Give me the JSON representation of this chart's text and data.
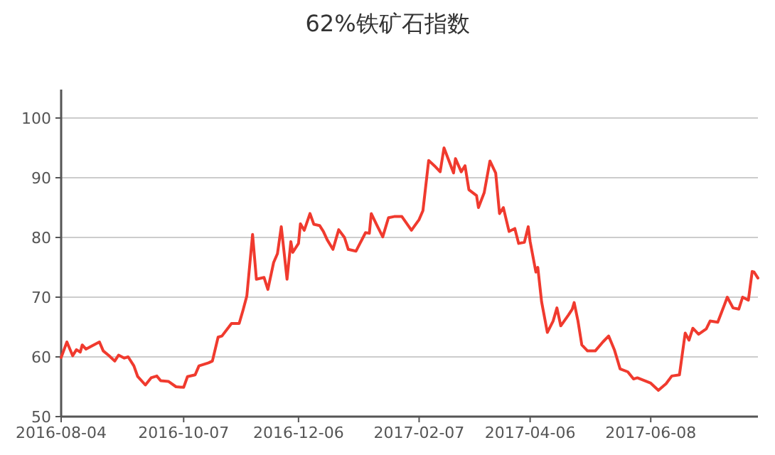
{
  "chart_data": {
    "type": "line",
    "title": "62%铁矿石指数",
    "grid": "y",
    "xlim": [
      "2016-08-04",
      "2017-08-03"
    ],
    "xticks": [
      "2016-08-04",
      "2016-10-07",
      "2016-12-06",
      "2017-02-07",
      "2017-04-06",
      "2017-06-08"
    ],
    "ylim": [
      50,
      100
    ],
    "yticks": [
      50,
      60,
      70,
      80,
      90,
      100
    ],
    "series": [
      {
        "color": "#f03a2e",
        "x": [
          "2016-08-04",
          "2016-08-07",
          "2016-08-10",
          "2016-08-12",
          "2016-08-14",
          "2016-08-15",
          "2016-08-17",
          "2016-08-21",
          "2016-08-24",
          "2016-08-26",
          "2016-08-29",
          "2016-09-01",
          "2016-09-03",
          "2016-09-06",
          "2016-09-08",
          "2016-09-11",
          "2016-09-13",
          "2016-09-17",
          "2016-09-20",
          "2016-09-23",
          "2016-09-25",
          "2016-09-29",
          "2016-10-03",
          "2016-10-07",
          "2016-10-09",
          "2016-10-13",
          "2016-10-15",
          "2016-10-20",
          "2016-10-22",
          "2016-10-25",
          "2016-10-27",
          "2016-11-01",
          "2016-11-05",
          "2016-11-07",
          "2016-11-09",
          "2016-11-12",
          "2016-11-14",
          "2016-11-18",
          "2016-11-20",
          "2016-11-23",
          "2016-11-25",
          "2016-11-27",
          "2016-11-30",
          "2016-12-02",
          "2016-12-03",
          "2016-12-06",
          "2016-12-07",
          "2016-12-09",
          "2016-12-12",
          "2016-12-14",
          "2016-12-17",
          "2016-12-19",
          "2016-12-21",
          "2016-12-24",
          "2016-12-27",
          "2016-12-30",
          "2017-01-01",
          "2017-01-05",
          "2017-01-10",
          "2017-01-12",
          "2017-01-13",
          "2017-01-16",
          "2017-01-19",
          "2017-01-22",
          "2017-01-25",
          "2017-01-29",
          "2017-02-03",
          "2017-02-07",
          "2017-02-09",
          "2017-02-12",
          "2017-02-15",
          "2017-02-18",
          "2017-02-20",
          "2017-02-25",
          "2017-02-26",
          "2017-03-01",
          "2017-03-03",
          "2017-03-05",
          "2017-03-09",
          "2017-03-10",
          "2017-03-13",
          "2017-03-16",
          "2017-03-19",
          "2017-03-21",
          "2017-03-23",
          "2017-03-26",
          "2017-03-29",
          "2017-03-31",
          "2017-04-03",
          "2017-04-05",
          "2017-04-06",
          "2017-04-09",
          "2017-04-10",
          "2017-04-12",
          "2017-04-15",
          "2017-04-18",
          "2017-04-20",
          "2017-04-22",
          "2017-04-26",
          "2017-04-28",
          "2017-04-29",
          "2017-05-01",
          "2017-05-03",
          "2017-05-06",
          "2017-05-10",
          "2017-05-14",
          "2017-05-17",
          "2017-05-20",
          "2017-05-23",
          "2017-05-27",
          "2017-05-30",
          "2017-06-01",
          "2017-06-08",
          "2017-06-10",
          "2017-06-12",
          "2017-06-16",
          "2017-06-19",
          "2017-06-23",
          "2017-06-26",
          "2017-06-28",
          "2017-06-30",
          "2017-07-03",
          "2017-07-07",
          "2017-07-09",
          "2017-07-13",
          "2017-07-16",
          "2017-07-18",
          "2017-07-21",
          "2017-07-24",
          "2017-07-26",
          "2017-07-29",
          "2017-07-31",
          "2017-08-01",
          "2017-08-03"
        ],
        "values": [
          59.9,
          62.5,
          60.2,
          61.2,
          60.8,
          62.0,
          61.3,
          62.0,
          62.5,
          61.0,
          60.2,
          59.3,
          60.3,
          59.8,
          60.0,
          58.5,
          56.7,
          55.3,
          56.5,
          56.8,
          56.0,
          55.9,
          55.0,
          54.9,
          56.7,
          57.0,
          58.5,
          59.0,
          59.3,
          63.3,
          63.5,
          65.6,
          65.6,
          67.8,
          70.2,
          80.5,
          73.0,
          73.3,
          71.3,
          75.8,
          77.3,
          81.8,
          73.0,
          79.3,
          77.5,
          79.0,
          82.3,
          81.2,
          84.0,
          82.2,
          82.0,
          81.0,
          79.6,
          78.0,
          81.3,
          80.0,
          78.0,
          77.7,
          80.8,
          80.7,
          84.0,
          82.0,
          80.1,
          83.3,
          83.5,
          83.5,
          81.2,
          83.0,
          84.5,
          92.9,
          92.0,
          91.0,
          95.0,
          90.8,
          93.2,
          91.0,
          92.0,
          88.0,
          87.0,
          85.0,
          87.5,
          92.8,
          90.8,
          84.0,
          85.0,
          81.0,
          81.5,
          79.0,
          79.2,
          81.8,
          79.3,
          74.2,
          75.0,
          69.2,
          64.1,
          66.0,
          68.2,
          65.2,
          67.0,
          68.0,
          69.1,
          66.0,
          62.0,
          61.0,
          61.0,
          62.5,
          63.5,
          61.2,
          58.0,
          57.5,
          56.3,
          56.5,
          55.6,
          55.0,
          54.4,
          55.5,
          56.8,
          57.0,
          64.0,
          62.8,
          64.8,
          63.8,
          64.7,
          66.0,
          65.8,
          68.3,
          70.0,
          68.2,
          68.0,
          70.0,
          69.5,
          74.3,
          74.2,
          73.2
        ]
      }
    ]
  }
}
